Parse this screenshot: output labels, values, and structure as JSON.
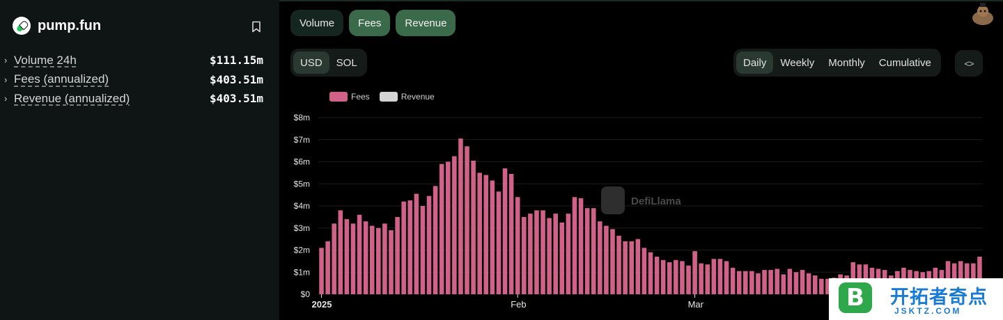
{
  "protocol": {
    "name": "pump.fun",
    "icon": "pill-logo"
  },
  "metrics": [
    {
      "label": "Volume 24h",
      "value": "$111.15m"
    },
    {
      "label": "Fees (annualized)",
      "value": "$403.51m"
    },
    {
      "label": "Revenue (annualized)",
      "value": "$403.51m"
    }
  ],
  "tabs": [
    "Volume",
    "Fees",
    "Revenue"
  ],
  "active_tabs": [
    "Fees",
    "Revenue"
  ],
  "currency": {
    "options": [
      "USD",
      "SOL"
    ],
    "selected": "USD"
  },
  "period": {
    "options": [
      "Daily",
      "Weekly",
      "Monthly",
      "Cumulative"
    ],
    "selected": "Daily"
  },
  "embed_label": "<>",
  "watermark": "DefiLlama",
  "promo": {
    "logo_letter": "B",
    "title": "开拓者奇点",
    "subtitle": "JSKTZ.COM"
  },
  "colors": {
    "fees": "#d0628a",
    "revenue": "#d4d4d4",
    "accent": "#3b6a4b"
  },
  "chart_data": {
    "type": "bar",
    "legend": [
      "Fees",
      "Revenue"
    ],
    "series": [
      {
        "name": "Fees",
        "values": [
          2.1,
          2.4,
          3.2,
          3.8,
          3.4,
          3.2,
          3.6,
          3.3,
          3.1,
          3.0,
          3.2,
          2.9,
          3.5,
          4.2,
          4.25,
          4.55,
          4.0,
          4.45,
          4.9,
          5.9,
          6.0,
          6.25,
          7.05,
          6.7,
          6.05,
          5.5,
          5.4,
          5.15,
          4.65,
          5.7,
          5.45,
          4.4,
          3.5,
          3.65,
          3.8,
          3.8,
          3.45,
          3.65,
          3.25,
          3.65,
          4.4,
          4.35,
          3.9,
          3.9,
          3.3,
          3.1,
          2.95,
          2.65,
          2.4,
          2.4,
          2.5,
          2.1,
          1.9,
          1.7,
          1.55,
          1.45,
          1.55,
          1.5,
          1.3,
          1.95,
          1.4,
          1.35,
          1.6,
          1.6,
          1.5,
          1.2,
          1.05,
          1.05,
          1.05,
          0.95,
          1.1,
          1.1,
          1.15,
          0.9,
          1.15,
          1.0,
          1.1,
          0.95,
          0.85,
          0.7,
          0.7,
          0.75,
          0.9,
          0.85,
          1.45,
          1.35,
          1.35,
          1.2,
          1.15,
          1.1,
          0.85,
          1.05,
          1.2,
          1.1,
          1.05,
          1.0,
          1.05,
          1.2,
          1.1,
          1.5,
          1.4,
          1.5,
          1.4,
          1.4,
          1.7
        ]
      }
    ],
    "x_ticks": [
      {
        "label": "2025",
        "index": 0
      },
      {
        "label": "Feb",
        "index": 31
      },
      {
        "label": "Mar",
        "index": 59
      }
    ],
    "y_ticks": [
      "$0",
      "$1m",
      "$2m",
      "$3m",
      "$4m",
      "$5m",
      "$6m",
      "$7m",
      "$8m"
    ],
    "ylim": [
      0,
      8
    ],
    "grid": true,
    "legend_position": "top-left"
  }
}
